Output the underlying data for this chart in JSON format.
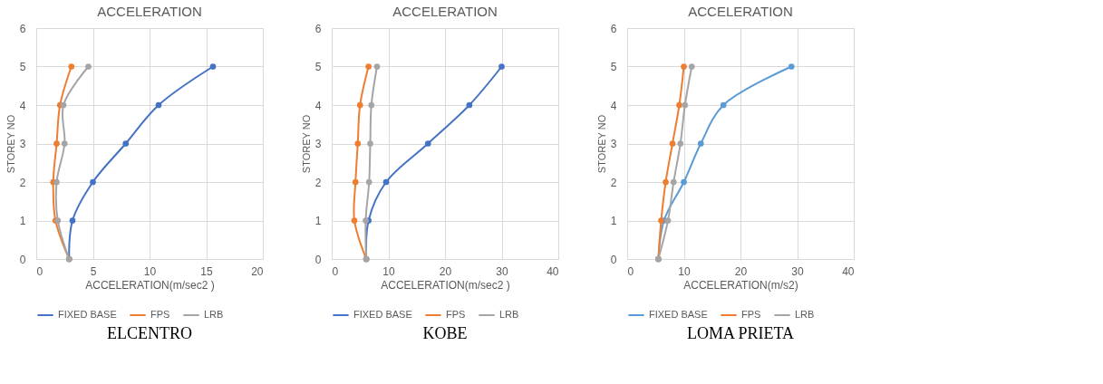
{
  "chart_data": [
    {
      "type": "line",
      "title": "ACCELERATION",
      "xlabel": "ACCELERATION(m/sec2 )",
      "ylabel": "STOREY NO",
      "xlim": [
        0,
        20
      ],
      "xticks": [
        0,
        5,
        10,
        15,
        20
      ],
      "ylim": [
        0,
        6
      ],
      "yticks": [
        0,
        1,
        2,
        3,
        4,
        5,
        6
      ],
      "grid": true,
      "legend": "bottom",
      "marker": "circle",
      "line_style": "solid",
      "annotations": [
        "ELCENTRO"
      ],
      "series": [
        {
          "name": "FIXED BASE",
          "color": "#4472c4",
          "x": [
            2.9,
            3.2,
            5,
            7.9,
            10.8,
            15.6
          ],
          "values": [
            0,
            1,
            2,
            3,
            4,
            5
          ]
        },
        {
          "name": "FPS",
          "color": "#ed7d31",
          "x": [
            2.9,
            1.7,
            1.5,
            1.8,
            2.1,
            3.1
          ],
          "values": [
            0,
            1,
            2,
            3,
            4,
            5
          ]
        },
        {
          "name": "LRB",
          "color": "#a5a5a5",
          "x": [
            2.9,
            1.9,
            1.8,
            2.5,
            2.4,
            4.6
          ],
          "values": [
            0,
            1,
            2,
            3,
            4,
            5
          ]
        }
      ]
    },
    {
      "type": "line",
      "title": "ACCELERATION",
      "xlabel": "ACCELERATION(m/sec2 )",
      "ylabel": "STOREY NO",
      "xlim": [
        0,
        40
      ],
      "xticks": [
        0,
        10,
        20,
        30,
        40
      ],
      "ylim": [
        0,
        6
      ],
      "yticks": [
        0,
        1,
        2,
        3,
        4,
        5,
        6
      ],
      "grid": true,
      "legend": "bottom",
      "marker": "circle",
      "line_style": "solid",
      "annotations": [
        "KOBE"
      ],
      "series": [
        {
          "name": "FIXED BASE",
          "color": "#4472c4",
          "x": [
            6.1,
            6.5,
            9.6,
            17,
            24.3,
            30
          ],
          "values": [
            0,
            1,
            2,
            3,
            4,
            5
          ]
        },
        {
          "name": "FPS",
          "color": "#ed7d31",
          "x": [
            6.1,
            4,
            4.2,
            4.6,
            5,
            6.5
          ],
          "values": [
            0,
            1,
            2,
            3,
            4,
            5
          ]
        },
        {
          "name": "LRB",
          "color": "#a5a5a5",
          "x": [
            6.1,
            6,
            6.6,
            6.8,
            7,
            8
          ],
          "values": [
            0,
            1,
            2,
            3,
            4,
            5
          ]
        }
      ]
    },
    {
      "type": "line",
      "title": "ACCELERATION",
      "xlabel": "ACCELERATION(m/s2)",
      "ylabel": "STOREY NO",
      "xlim": [
        0,
        40
      ],
      "xticks": [
        0,
        10,
        20,
        30,
        40
      ],
      "ylim": [
        0,
        6
      ],
      "yticks": [
        0,
        1,
        2,
        3,
        4,
        5,
        6
      ],
      "grid": true,
      "legend": "bottom",
      "marker": "circle",
      "line_style": "solid",
      "annotations": [
        "LOMA PRIETA"
      ],
      "series": [
        {
          "name": "FIXED BASE",
          "color": "#5b9bd5",
          "x": [
            5.5,
            6.5,
            10,
            13,
            17,
            29
          ],
          "values": [
            0,
            1,
            2,
            3,
            4,
            5
          ]
        },
        {
          "name": "FPS",
          "color": "#ed7d31",
          "x": [
            5.5,
            6,
            6.8,
            8,
            9.2,
            10
          ],
          "values": [
            0,
            1,
            2,
            3,
            4,
            5
          ]
        },
        {
          "name": "LRB",
          "color": "#a5a5a5",
          "x": [
            5.5,
            7.2,
            8.2,
            9.4,
            10.2,
            11.4
          ],
          "values": [
            0,
            1,
            2,
            3,
            4,
            5
          ]
        }
      ]
    }
  ]
}
